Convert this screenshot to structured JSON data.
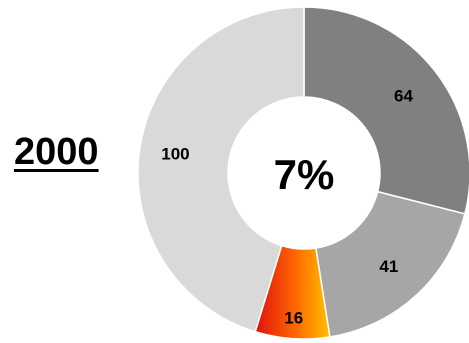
{
  "year_label": "2000",
  "chart_data": {
    "type": "pie",
    "style": "donut",
    "categories": [
      "",
      "",
      "",
      ""
    ],
    "values": [
      64,
      41,
      16,
      100
    ],
    "data_labels": [
      "64",
      "41",
      "16",
      "100"
    ],
    "colors": [
      "#808080",
      "#a6a6a6",
      "gradient-red-orange",
      "#d9d9d9"
    ],
    "center_label": "7%",
    "title": "",
    "legend": "none"
  }
}
